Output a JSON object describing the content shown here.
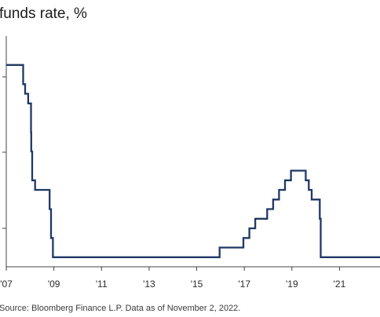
{
  "title": "funds rate, %",
  "source": "Source: Bloomberg Finance L.P. Data as of November 2, 2022.",
  "colors": {
    "line": "#1f3864",
    "axis": "#444444",
    "text": "#2b2b2b"
  },
  "chart_data": {
    "type": "line",
    "title": "funds rate, %",
    "xlabel": "",
    "ylabel": "",
    "x_tick_labels": [
      "'07",
      "'09",
      "'11",
      "'13",
      "'15",
      "'17",
      "'19",
      "'21"
    ],
    "x_tick_values": [
      2007,
      2009,
      2011,
      2013,
      2015,
      2017,
      2019,
      2021
    ],
    "xlim": [
      2007,
      2022.7
    ],
    "ylim": [
      0,
      6
    ],
    "grid": false,
    "legend": "none",
    "series": [
      {
        "step": true,
        "x": [
          2007.0,
          2007.71,
          2007.79,
          2007.92,
          2008.04,
          2008.05,
          2008.09,
          2008.21,
          2008.31,
          2008.82,
          2008.88,
          2008.96,
          2015.96,
          2016.96,
          2017.21,
          2017.46,
          2017.96,
          2018.21,
          2018.46,
          2018.71,
          2018.96,
          2019.58,
          2019.71,
          2019.83,
          2020.17,
          2020.21,
          2022.7
        ],
        "y": [
          5.25,
          4.75,
          4.5,
          4.25,
          3.5,
          3.0,
          2.25,
          2.0,
          2.0,
          1.5,
          0.75,
          0.25,
          0.5,
          0.75,
          1.0,
          1.25,
          1.5,
          1.75,
          2.0,
          2.25,
          2.5,
          2.25,
          2.0,
          1.75,
          1.25,
          0.25,
          0.25
        ]
      }
    ]
  }
}
